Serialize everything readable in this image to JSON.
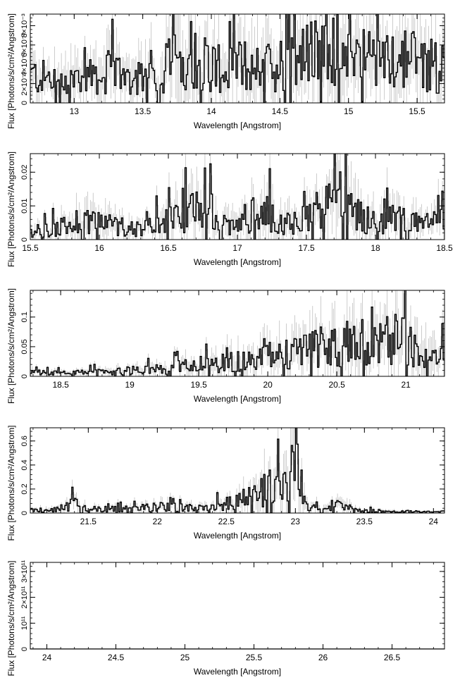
{
  "chart_data": [
    {
      "type": "line",
      "xlabel": "Wavelength [Angstrom]",
      "ylabel": "Flux [Photons/s/cm²/Angstrom]",
      "xlim": [
        12.68,
        15.7
      ],
      "ylim": [
        0,
        0.0092
      ],
      "xticks": [
        13,
        13.5,
        14,
        14.5,
        15,
        15.5
      ],
      "xtick_labels": [
        "13",
        "13.5",
        "14",
        "14.5",
        "15",
        "15.5"
      ],
      "yticks": [
        0,
        0.002,
        0.004,
        0.006,
        0.008
      ],
      "ytick_labels": [
        "0",
        "2×10⁻³",
        "4×10⁻³",
        "6×10⁻³",
        "8×10⁻³"
      ],
      "series": [
        {
          "x": [
            12.7,
            12.85,
            13.0,
            13.15,
            13.3,
            13.45,
            13.6,
            13.75,
            13.85,
            14.0,
            14.15,
            14.3,
            14.45,
            14.6,
            14.75,
            14.85,
            14.95,
            15.1,
            15.25,
            15.4,
            15.55,
            15.68
          ],
          "y": [
            0.0026,
            0.0022,
            0.0024,
            0.0027,
            0.003,
            0.0024,
            0.0028,
            0.0044,
            0.0048,
            0.0036,
            0.0033,
            0.0038,
            0.0035,
            0.0042,
            0.0046,
            0.0054,
            0.0049,
            0.0044,
            0.0038,
            0.0045,
            0.0041,
            0.0033
          ]
        }
      ]
    },
    {
      "type": "line",
      "xlabel": "Wavelength [Angstrom]",
      "ylabel": "Flux [Photons/s/cm²/Angstrom]",
      "xlim": [
        15.5,
        18.5
      ],
      "ylim": [
        0,
        0.0255
      ],
      "xticks": [
        15.5,
        16,
        16.5,
        17,
        17.5,
        18,
        18.5
      ],
      "xtick_labels": [
        "15.5",
        "16",
        "16.5",
        "17",
        "17.5",
        "18",
        "18.5"
      ],
      "yticks": [
        0,
        0.01,
        0.02
      ],
      "ytick_labels": [
        "0",
        "0.01",
        "0.02"
      ],
      "series": [
        {
          "x": [
            15.5,
            15.7,
            15.9,
            16.1,
            16.3,
            16.5,
            16.6,
            16.75,
            16.9,
            17.05,
            17.2,
            17.35,
            17.5,
            17.65,
            17.75,
            17.9,
            18.05,
            18.2,
            18.35,
            18.5
          ],
          "y": [
            0.002,
            0.003,
            0.006,
            0.004,
            0.003,
            0.005,
            0.007,
            0.008,
            0.004,
            0.006,
            0.007,
            0.005,
            0.006,
            0.009,
            0.011,
            0.006,
            0.005,
            0.006,
            0.004,
            0.005
          ]
        }
      ]
    },
    {
      "type": "line",
      "xlabel": "Wavelength [Angstrom]",
      "ylabel": "Flux [Photons/s/cm²/Angstrom]",
      "xlim": [
        18.28,
        21.28
      ],
      "ylim": [
        0,
        0.145
      ],
      "xticks": [
        18.5,
        19,
        19.5,
        20,
        20.5,
        21
      ],
      "xtick_labels": [
        "18.5",
        "19",
        "19.5",
        "20",
        "20.5",
        "21"
      ],
      "yticks": [
        0,
        0.05,
        0.1
      ],
      "ytick_labels": [
        "0",
        "0.05",
        "0.1"
      ],
      "series": [
        {
          "x": [
            18.3,
            18.5,
            18.7,
            18.9,
            19.1,
            19.3,
            19.5,
            19.7,
            19.9,
            20.1,
            20.25,
            20.4,
            20.55,
            20.65,
            20.8,
            20.95,
            21.05,
            21.2,
            21.28
          ],
          "y": [
            0.006,
            0.005,
            0.006,
            0.008,
            0.01,
            0.013,
            0.018,
            0.022,
            0.027,
            0.035,
            0.04,
            0.045,
            0.05,
            0.055,
            0.042,
            0.06,
            0.05,
            0.035,
            0.025
          ]
        }
      ]
    },
    {
      "type": "line",
      "xlabel": "Wavelength [Angstrom]",
      "ylabel": "Flux [Photons/s/cm²/Angstrom]",
      "xlim": [
        21.08,
        24.08
      ],
      "ylim": [
        0,
        0.71
      ],
      "xticks": [
        21.5,
        22,
        22.5,
        23,
        23.5,
        24
      ],
      "xtick_labels": [
        "21.5",
        "22",
        "22.5",
        "23",
        "23.5",
        "24"
      ],
      "yticks": [
        0,
        0.2,
        0.4,
        0.6
      ],
      "ytick_labels": [
        "0",
        "0.2",
        "0.4",
        "0.6"
      ],
      "series": [
        {
          "x": [
            21.1,
            21.3,
            21.4,
            21.5,
            21.7,
            21.9,
            22.05,
            22.2,
            22.4,
            22.5,
            22.6,
            22.7,
            22.8,
            22.9,
            22.95,
            23.0,
            23.05,
            23.1,
            23.2,
            23.35,
            23.45,
            23.7,
            23.9,
            24.08
          ],
          "y": [
            0.02,
            0.03,
            0.08,
            0.03,
            0.03,
            0.04,
            0.05,
            0.04,
            0.04,
            0.07,
            0.1,
            0.14,
            0.2,
            0.27,
            0.31,
            0.36,
            0.2,
            0.05,
            0.03,
            0.07,
            0.02,
            0.015,
            0.01,
            0.01
          ]
        }
      ]
    },
    {
      "type": "line",
      "xlabel": "Wavelength [Angstrom]",
      "ylabel": "Flux [Photons/s/cm²/Angstrom]",
      "xlim": [
        23.88,
        26.88
      ],
      "ylim": [
        0,
        335000000000.0
      ],
      "xticks": [
        24,
        24.5,
        25,
        25.5,
        26,
        26.5
      ],
      "xtick_labels": [
        "24",
        "24.5",
        "25",
        "25.5",
        "26",
        "26.5"
      ],
      "yticks": [
        0,
        100000000000.0,
        200000000000.0,
        300000000000.0
      ],
      "ytick_labels": [
        "0",
        "10¹¹",
        "2×10¹¹",
        "3×10¹¹"
      ],
      "series": [
        {
          "x": [
            23.88,
            26.88
          ],
          "y": [
            0,
            0
          ]
        }
      ]
    }
  ]
}
